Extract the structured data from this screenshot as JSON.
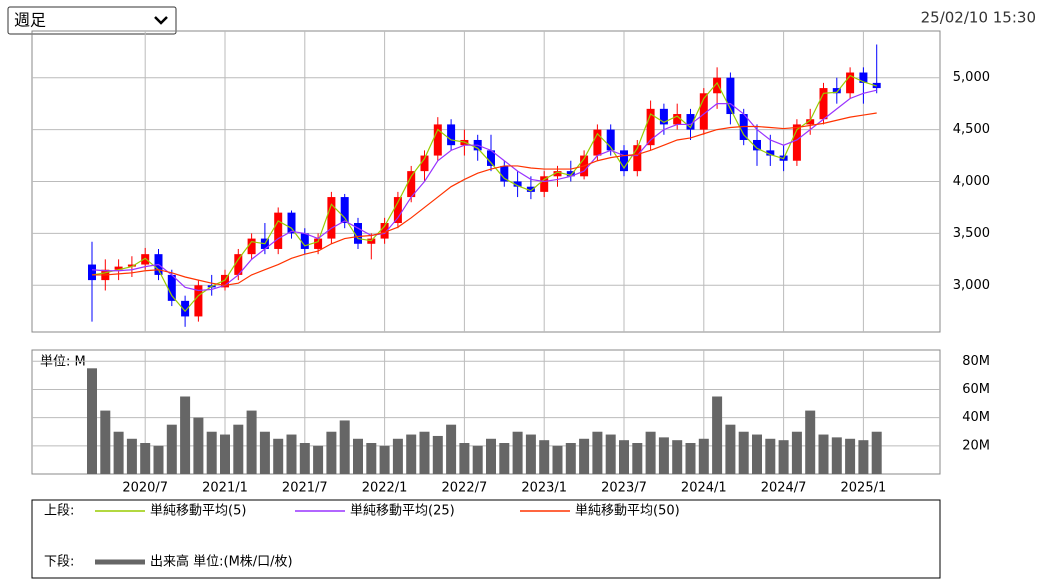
{
  "period_select": "週足",
  "timestamp": "25/02/10 15:30",
  "chart_data": [
    {
      "type": "candlestick",
      "legend_label": "上段:",
      "up_color": "#ff0000",
      "down_color": "#0000ff",
      "open": [
        3200,
        3050,
        3150,
        3180,
        3200,
        3300,
        3100,
        2850,
        2700,
        3000,
        2980,
        3100,
        3300,
        3450,
        3350,
        3700,
        3500,
        3350,
        3450,
        3850,
        3600,
        3400,
        3450,
        3600,
        3850,
        4100,
        4250,
        4550,
        4350,
        4400,
        4300,
        4150,
        4000,
        3950,
        3900,
        4050,
        4100,
        4050,
        4250,
        4500,
        4300,
        4100,
        4350,
        4700,
        4550,
        4650,
        4500,
        4850,
        5000,
        4650,
        4400,
        4300,
        4250,
        4200,
        4550,
        4600,
        4900,
        4850,
        5050,
        4950
      ],
      "high": [
        3420,
        3250,
        3250,
        3280,
        3360,
        3350,
        3150,
        2900,
        3050,
        3100,
        3150,
        3350,
        3500,
        3600,
        3750,
        3720,
        3550,
        3500,
        3900,
        3880,
        3650,
        3500,
        3650,
        3900,
        4150,
        4300,
        4620,
        4600,
        4500,
        4450,
        4450,
        4200,
        4100,
        4050,
        4100,
        4150,
        4200,
        4300,
        4550,
        4550,
        4350,
        4400,
        4780,
        4750,
        4750,
        4700,
        4900,
        5100,
        5050,
        4700,
        4550,
        4450,
        4350,
        4600,
        4700,
        4950,
        5000,
        5100,
        5100,
        5320
      ],
      "low": [
        2650,
        2950,
        3050,
        3080,
        3150,
        3050,
        2800,
        2600,
        2650,
        2900,
        2950,
        3050,
        3250,
        3300,
        3300,
        3450,
        3300,
        3300,
        3400,
        3550,
        3350,
        3250,
        3400,
        3550,
        3800,
        4000,
        4200,
        4300,
        4250,
        4200,
        4100,
        3950,
        3850,
        3830,
        3850,
        3950,
        4000,
        4020,
        4200,
        4250,
        4050,
        4050,
        4300,
        4450,
        4500,
        4400,
        4450,
        4700,
        4550,
        4350,
        4150,
        4150,
        4100,
        4150,
        4450,
        4550,
        4750,
        4800,
        4750,
        4850
      ],
      "close": [
        3050,
        3150,
        3180,
        3200,
        3300,
        3100,
        2850,
        2700,
        3000,
        2980,
        3100,
        3300,
        3450,
        3350,
        3700,
        3500,
        3350,
        3450,
        3850,
        3600,
        3400,
        3450,
        3600,
        3850,
        4100,
        4250,
        4550,
        4350,
        4400,
        4300,
        4150,
        4000,
        3950,
        3900,
        4050,
        4100,
        4050,
        4250,
        4500,
        4300,
        4100,
        4350,
        4700,
        4550,
        4650,
        4500,
        4850,
        5000,
        4650,
        4400,
        4300,
        4250,
        4200,
        4550,
        4600,
        4900,
        4850,
        5050,
        4950,
        4900
      ],
      "series": [
        {
          "name": "単純移動平均(5)",
          "color": "#99cc00",
          "values": [
            3100,
            3120,
            3150,
            3180,
            3260,
            3150,
            2900,
            2750,
            2900,
            2990,
            3050,
            3250,
            3420,
            3400,
            3620,
            3550,
            3380,
            3420,
            3780,
            3650,
            3450,
            3430,
            3570,
            3800,
            4050,
            4220,
            4500,
            4400,
            4380,
            4320,
            4180,
            4030,
            3960,
            3910,
            4020,
            4090,
            4060,
            4220,
            4460,
            4330,
            4130,
            4320,
            4650,
            4570,
            4630,
            4520,
            4800,
            4950,
            4700,
            4450,
            4320,
            4260,
            4220,
            4500,
            4590,
            4850,
            4860,
            5020,
            4960,
            4920
          ]
        },
        {
          "name": "単純移動平均(25)",
          "color": "#9933ff",
          "values": [
            3150,
            3140,
            3140,
            3150,
            3180,
            3200,
            3100,
            2980,
            2950,
            2960,
            3000,
            3100,
            3250,
            3350,
            3450,
            3520,
            3500,
            3450,
            3550,
            3620,
            3550,
            3480,
            3500,
            3650,
            3850,
            4000,
            4200,
            4300,
            4350,
            4350,
            4300,
            4200,
            4100,
            4020,
            4000,
            4020,
            4050,
            4100,
            4250,
            4300,
            4250,
            4250,
            4400,
            4500,
            4550,
            4550,
            4650,
            4750,
            4750,
            4650,
            4500,
            4400,
            4350,
            4400,
            4500,
            4600,
            4700,
            4800,
            4850,
            4880
          ]
        },
        {
          "name": "単純移動平均(50)",
          "color": "#ff3300",
          "values": [
            3100,
            3100,
            3110,
            3120,
            3140,
            3150,
            3120,
            3080,
            3050,
            3020,
            3000,
            3020,
            3100,
            3150,
            3200,
            3260,
            3300,
            3330,
            3400,
            3450,
            3470,
            3480,
            3510,
            3560,
            3650,
            3750,
            3850,
            3950,
            4020,
            4080,
            4120,
            4150,
            4150,
            4130,
            4120,
            4120,
            4120,
            4150,
            4200,
            4230,
            4250,
            4260,
            4300,
            4350,
            4400,
            4420,
            4460,
            4500,
            4520,
            4530,
            4530,
            4520,
            4510,
            4520,
            4540,
            4560,
            4590,
            4620,
            4640,
            4660
          ]
        }
      ],
      "ylim": [
        2550,
        5450
      ],
      "yticks": [
        {
          "value": 3000,
          "label": "3,000"
        },
        {
          "value": 3500,
          "label": "3,500"
        },
        {
          "value": 4000,
          "label": "4,000"
        },
        {
          "value": 4500,
          "label": "4,500"
        },
        {
          "value": 5000,
          "label": "5,000"
        }
      ],
      "grid": true
    },
    {
      "type": "bar",
      "legend_label": "下段:",
      "name": "出来高 単位:(M株/口/枚)",
      "unit_label": "単位: M",
      "color": "#666666",
      "categories": [
        null,
        null,
        null,
        null,
        "2020/7",
        null,
        null,
        null,
        null,
        null,
        "2021/1",
        null,
        null,
        null,
        null,
        null,
        "2021/7",
        null,
        null,
        null,
        null,
        null,
        "2022/1",
        null,
        null,
        null,
        null,
        null,
        "2022/7",
        null,
        null,
        null,
        null,
        null,
        "2023/1",
        null,
        null,
        null,
        null,
        null,
        "2023/7",
        null,
        null,
        null,
        null,
        null,
        "2024/1",
        null,
        null,
        null,
        null,
        null,
        "2024/7",
        null,
        null,
        null,
        null,
        null,
        "2025/1",
        null
      ],
      "values": [
        75,
        45,
        30,
        25,
        22,
        20,
        35,
        55,
        40,
        30,
        28,
        35,
        45,
        30,
        25,
        28,
        22,
        20,
        30,
        38,
        25,
        22,
        20,
        25,
        28,
        30,
        27,
        35,
        22,
        20,
        25,
        22,
        30,
        28,
        24,
        20,
        22,
        25,
        30,
        28,
        24,
        22,
        30,
        26,
        24,
        22,
        25,
        55,
        35,
        30,
        28,
        25,
        24,
        30,
        45,
        28,
        26,
        25,
        24,
        30
      ],
      "ylim": [
        0,
        88
      ],
      "yticks": [
        {
          "value": 20,
          "label": "20M"
        },
        {
          "value": 40,
          "label": "40M"
        },
        {
          "value": 60,
          "label": "60M"
        },
        {
          "value": 80,
          "label": "80M"
        }
      ],
      "grid": true
    }
  ]
}
